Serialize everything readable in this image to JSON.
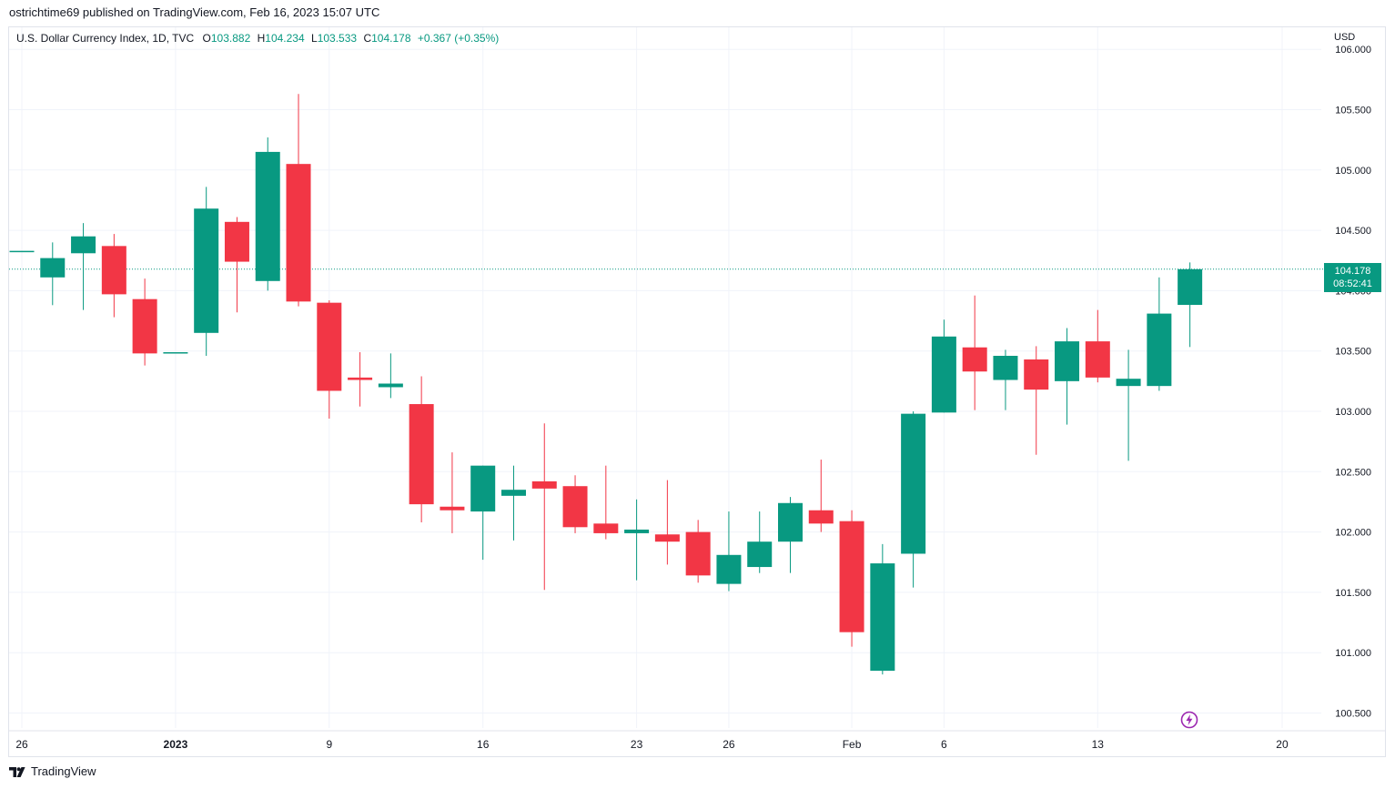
{
  "header": {
    "publish_text": "ostrichtime69 published on TradingView.com, Feb 16, 2023 15:07 UTC"
  },
  "legend": {
    "title": "U.S. Dollar Currency Index, 1D, TVC",
    "o_label": "O",
    "o_value": "103.882",
    "h_label": "H",
    "h_value": "104.234",
    "l_label": "L",
    "l_value": "103.533",
    "c_label": "C",
    "c_value": "104.178",
    "change": "+0.367 (+0.35%)"
  },
  "currency": "USD",
  "last_price": {
    "price": "104.178",
    "countdown": "08:52:41"
  },
  "footer": {
    "brand": "TradingView"
  },
  "colors": {
    "up": "#089981",
    "down": "#f23645",
    "grid": "#f0f3fa",
    "text": "#131722",
    "bolt": "#9c27b0"
  },
  "icons": {
    "logo": "tradingview-logo-icon",
    "bolt": "lightning-bolt-icon"
  },
  "chart_data": {
    "type": "candlestick",
    "title": "U.S. Dollar Currency Index, 1D, TVC",
    "ylabel": "USD",
    "ylim": [
      100.3,
      106.0
    ],
    "y_ticks": [
      "100.500",
      "101.000",
      "101.500",
      "102.000",
      "102.500",
      "103.000",
      "103.500",
      "104.000",
      "104.500",
      "105.000",
      "105.500",
      "106.000"
    ],
    "x_ticks": [
      {
        "label": "26",
        "at": "2022-12-26"
      },
      {
        "label": "2023",
        "at": "2023-01-02"
      },
      {
        "label": "9",
        "at": "2023-01-09"
      },
      {
        "label": "16",
        "at": "2023-01-16"
      },
      {
        "label": "23",
        "at": "2023-01-23"
      },
      {
        "label": "26",
        "at": "2023-01-26"
      },
      {
        "label": "Feb",
        "at": "2023-02-01"
      },
      {
        "label": "6",
        "at": "2023-02-06"
      },
      {
        "label": "13",
        "at": "2023-02-13"
      },
      {
        "label": "20",
        "at": "2023-02-20"
      }
    ],
    "candles": [
      {
        "date": "2022-12-26",
        "o": 104.33,
        "h": 104.33,
        "l": 104.33,
        "c": 104.33
      },
      {
        "date": "2022-12-27",
        "o": 104.11,
        "h": 104.4,
        "l": 103.88,
        "c": 104.27
      },
      {
        "date": "2022-12-28",
        "o": 104.31,
        "h": 104.56,
        "l": 103.84,
        "c": 104.45
      },
      {
        "date": "2022-12-29",
        "o": 104.37,
        "h": 104.47,
        "l": 103.78,
        "c": 103.97
      },
      {
        "date": "2022-12-30",
        "o": 103.93,
        "h": 104.1,
        "l": 103.38,
        "c": 103.48
      },
      {
        "date": "2023-01-02",
        "o": 103.49,
        "h": 103.49,
        "l": 103.49,
        "c": 103.49
      },
      {
        "date": "2023-01-03",
        "o": 103.65,
        "h": 104.86,
        "l": 103.46,
        "c": 104.68
      },
      {
        "date": "2023-01-04",
        "o": 104.57,
        "h": 104.61,
        "l": 103.82,
        "c": 104.24
      },
      {
        "date": "2023-01-05",
        "o": 104.08,
        "h": 105.27,
        "l": 104.0,
        "c": 105.15
      },
      {
        "date": "2023-01-06",
        "o": 105.05,
        "h": 105.63,
        "l": 103.87,
        "c": 103.91
      },
      {
        "date": "2023-01-09",
        "o": 103.9,
        "h": 103.92,
        "l": 102.94,
        "c": 103.17
      },
      {
        "date": "2023-01-10",
        "o": 103.28,
        "h": 103.49,
        "l": 103.04,
        "c": 103.26
      },
      {
        "date": "2023-01-11",
        "o": 103.2,
        "h": 103.48,
        "l": 103.11,
        "c": 103.23
      },
      {
        "date": "2023-01-12",
        "o": 103.06,
        "h": 103.29,
        "l": 102.08,
        "c": 102.23
      },
      {
        "date": "2023-01-13",
        "o": 102.21,
        "h": 102.66,
        "l": 101.99,
        "c": 102.18
      },
      {
        "date": "2023-01-16",
        "o": 102.17,
        "h": 102.55,
        "l": 101.77,
        "c": 102.55
      },
      {
        "date": "2023-01-17",
        "o": 102.3,
        "h": 102.55,
        "l": 101.93,
        "c": 102.35
      },
      {
        "date": "2023-01-18",
        "o": 102.42,
        "h": 102.9,
        "l": 101.52,
        "c": 102.36
      },
      {
        "date": "2023-01-19",
        "o": 102.38,
        "h": 102.47,
        "l": 101.99,
        "c": 102.04
      },
      {
        "date": "2023-01-20",
        "o": 102.07,
        "h": 102.55,
        "l": 101.94,
        "c": 101.99
      },
      {
        "date": "2023-01-23",
        "o": 101.99,
        "h": 102.27,
        "l": 101.6,
        "c": 102.02
      },
      {
        "date": "2023-01-24",
        "o": 101.98,
        "h": 102.43,
        "l": 101.73,
        "c": 101.92
      },
      {
        "date": "2023-01-25",
        "o": 102.0,
        "h": 102.1,
        "l": 101.58,
        "c": 101.64
      },
      {
        "date": "2023-01-26",
        "o": 101.57,
        "h": 102.17,
        "l": 101.51,
        "c": 101.81
      },
      {
        "date": "2023-01-27",
        "o": 101.71,
        "h": 102.17,
        "l": 101.66,
        "c": 101.92
      },
      {
        "date": "2023-01-30",
        "o": 101.92,
        "h": 102.29,
        "l": 101.66,
        "c": 102.24
      },
      {
        "date": "2023-01-31",
        "o": 102.18,
        "h": 102.6,
        "l": 102.0,
        "c": 102.07
      },
      {
        "date": "2023-02-01",
        "o": 102.09,
        "h": 102.18,
        "l": 101.05,
        "c": 101.17
      },
      {
        "date": "2023-02-02",
        "o": 100.85,
        "h": 101.9,
        "l": 100.82,
        "c": 101.74
      },
      {
        "date": "2023-02-03",
        "o": 101.82,
        "h": 103.0,
        "l": 101.54,
        "c": 102.98
      },
      {
        "date": "2023-02-06",
        "o": 102.99,
        "h": 103.76,
        "l": 102.99,
        "c": 103.62
      },
      {
        "date": "2023-02-07",
        "o": 103.53,
        "h": 103.96,
        "l": 103.01,
        "c": 103.33
      },
      {
        "date": "2023-02-08",
        "o": 103.26,
        "h": 103.51,
        "l": 103.01,
        "c": 103.46
      },
      {
        "date": "2023-02-09",
        "o": 103.43,
        "h": 103.54,
        "l": 102.64,
        "c": 103.18
      },
      {
        "date": "2023-02-10",
        "o": 103.25,
        "h": 103.69,
        "l": 102.89,
        "c": 103.58
      },
      {
        "date": "2023-02-13",
        "o": 103.58,
        "h": 103.84,
        "l": 103.24,
        "c": 103.28
      },
      {
        "date": "2023-02-14",
        "o": 103.21,
        "h": 103.51,
        "l": 102.59,
        "c": 103.27
      },
      {
        "date": "2023-02-15",
        "o": 103.21,
        "h": 104.11,
        "l": 103.17,
        "c": 103.81
      },
      {
        "date": "2023-02-16",
        "o": 103.882,
        "h": 104.234,
        "l": 103.533,
        "c": 104.178
      }
    ]
  }
}
